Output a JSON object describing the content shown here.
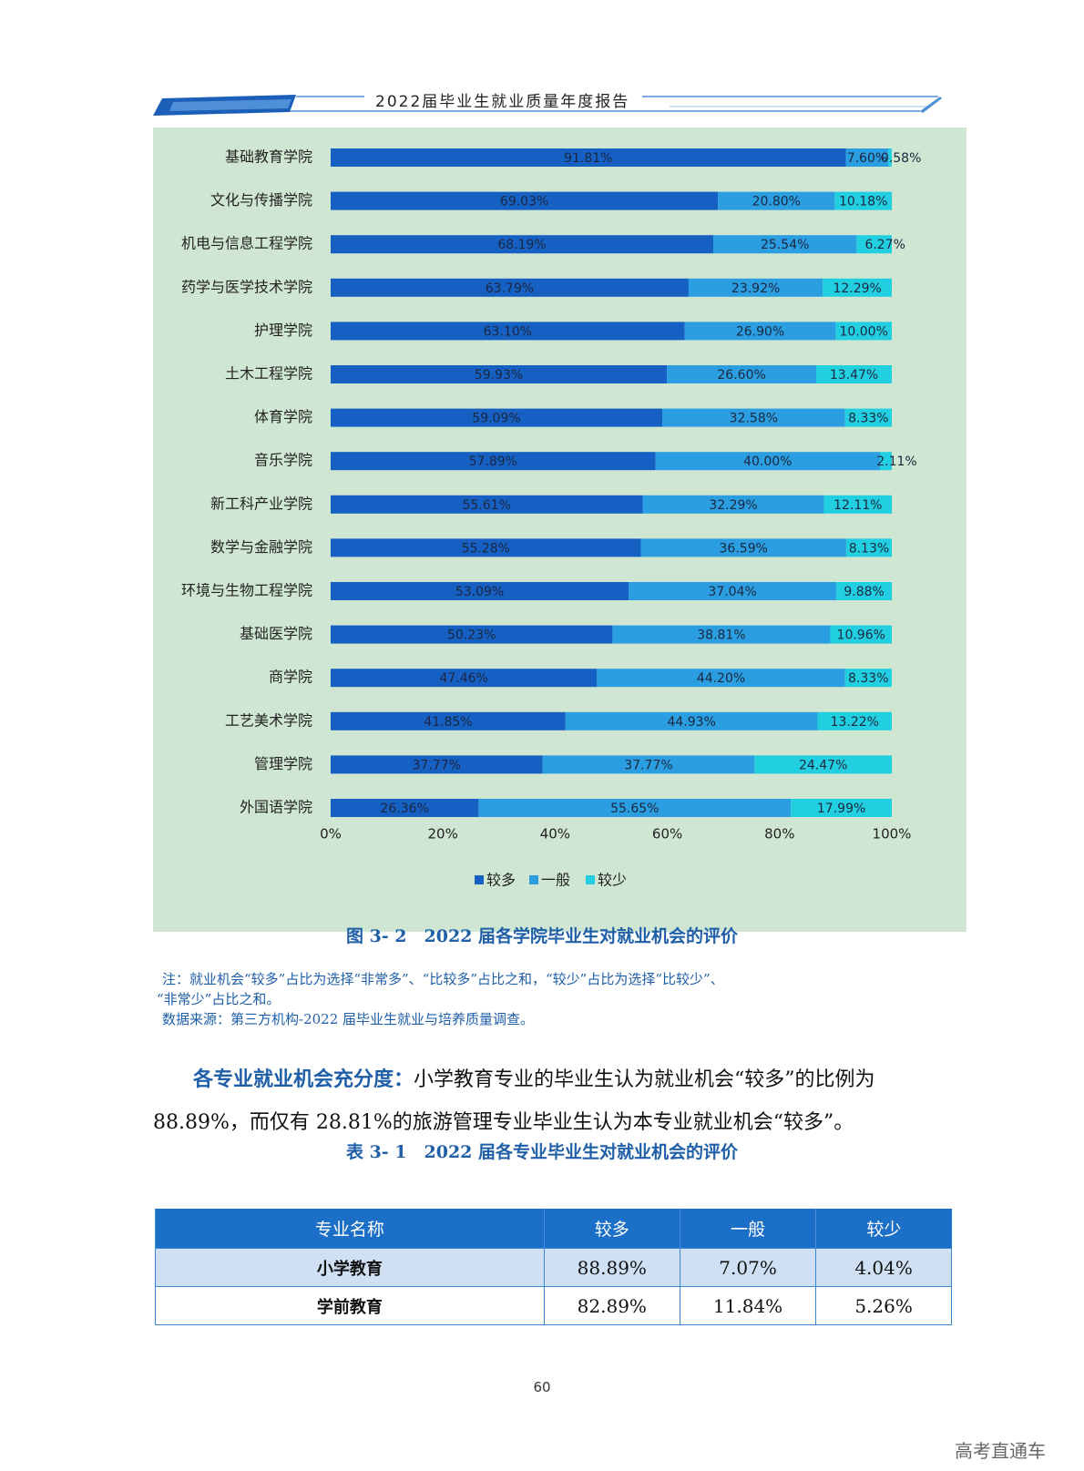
{
  "header": {
    "title": "2022届毕业生就业质量年度报告"
  },
  "chart_data": {
    "type": "bar",
    "orientation": "horizontal",
    "stacked": true,
    "categories": [
      "基础教育学院",
      "文化与传播学院",
      "机电与信息工程学院",
      "药学与医学技术学院",
      "护理学院",
      "土木工程学院",
      "体育学院",
      "音乐学院",
      "新工科产业学院",
      "数学与金融学院",
      "环境与生物工程学院",
      "基础医学院",
      "商学院",
      "工艺美术学院",
      "管理学院",
      "外国语学院"
    ],
    "series": [
      {
        "name": "较多",
        "color": "#1560c2",
        "values": [
          91.81,
          69.03,
          68.19,
          63.79,
          63.1,
          59.93,
          59.09,
          57.89,
          55.61,
          55.28,
          53.09,
          50.23,
          47.46,
          41.85,
          37.77,
          26.36
        ],
        "labels": [
          "91.81%",
          "69.03%",
          "68.19%",
          "63.79%",
          "63.10%",
          "59.93%",
          "59.09%",
          "57.89%",
          "55.61%",
          "55.28%",
          "53.09%",
          "50.23%",
          "47.46%",
          "41.85%",
          "37.77%",
          "26.36%"
        ]
      },
      {
        "name": "一般",
        "color": "#2a9ee0",
        "values": [
          7.6,
          20.8,
          25.54,
          23.92,
          26.9,
          26.6,
          32.58,
          40.0,
          32.29,
          36.59,
          37.04,
          38.81,
          44.2,
          44.93,
          37.77,
          55.65
        ],
        "labels": [
          "7.60%",
          "20.80%",
          "25.54%",
          "23.92%",
          "26.90%",
          "26.60%",
          "32.58%",
          "40.00%",
          "32.29%",
          "36.59%",
          "37.04%",
          "38.81%",
          "44.20%",
          "44.93%",
          "37.77%",
          "55.65%"
        ]
      },
      {
        "name": "较少",
        "color": "#22cfe0",
        "values": [
          0.58,
          10.18,
          6.27,
          12.29,
          10.0,
          13.47,
          8.33,
          2.11,
          12.11,
          8.13,
          9.88,
          10.96,
          8.33,
          13.22,
          24.47,
          17.99
        ],
        "labels": [
          "0.58%",
          "10.18%",
          "6.27%",
          "12.29%",
          "10.00%",
          "13.47%",
          "8.33%",
          "2.11%",
          "12.11%",
          "8.13%",
          "9.88%",
          "10.96%",
          "8.33%",
          "13.22%",
          "24.47%",
          "17.99%"
        ]
      }
    ],
    "xlim": [
      0,
      100
    ],
    "xticks": [
      "0%",
      "20%",
      "40%",
      "60%",
      "80%",
      "100%"
    ],
    "legend_position": "bottom"
  },
  "figure_caption": "图 3- 2　2022 届各学院毕业生对就业机会的评价",
  "notes": {
    "line1": "注：就业机会“较多”占比为选择“非常多”、“比较多”占比之和，“较少”占比为选择“比较少”、",
    "line2": "“非常少”占比之和。",
    "line3": "数据来源：第三方机构-2022 届毕业生就业与培养质量调查。"
  },
  "paragraph": {
    "lead": "各专业就业机会充分度：",
    "text": "小学教育专业的毕业生认为就业机会“较多”的比例为 88.89%，而仅有 28.81%的旅游管理专业毕业生认为本专业就业机会“较多”。"
  },
  "table_caption": "表 3- 1　2022 届各专业毕业生对就业机会的评价",
  "table": {
    "headers": [
      "专业名称",
      "较多",
      "一般",
      "较少"
    ],
    "rows": [
      [
        "小学教育",
        "88.89%",
        "7.07%",
        "4.04%"
      ],
      [
        "学前教育",
        "82.89%",
        "11.84%",
        "5.26%"
      ]
    ]
  },
  "page_number": "60",
  "watermark": "高考直通车"
}
